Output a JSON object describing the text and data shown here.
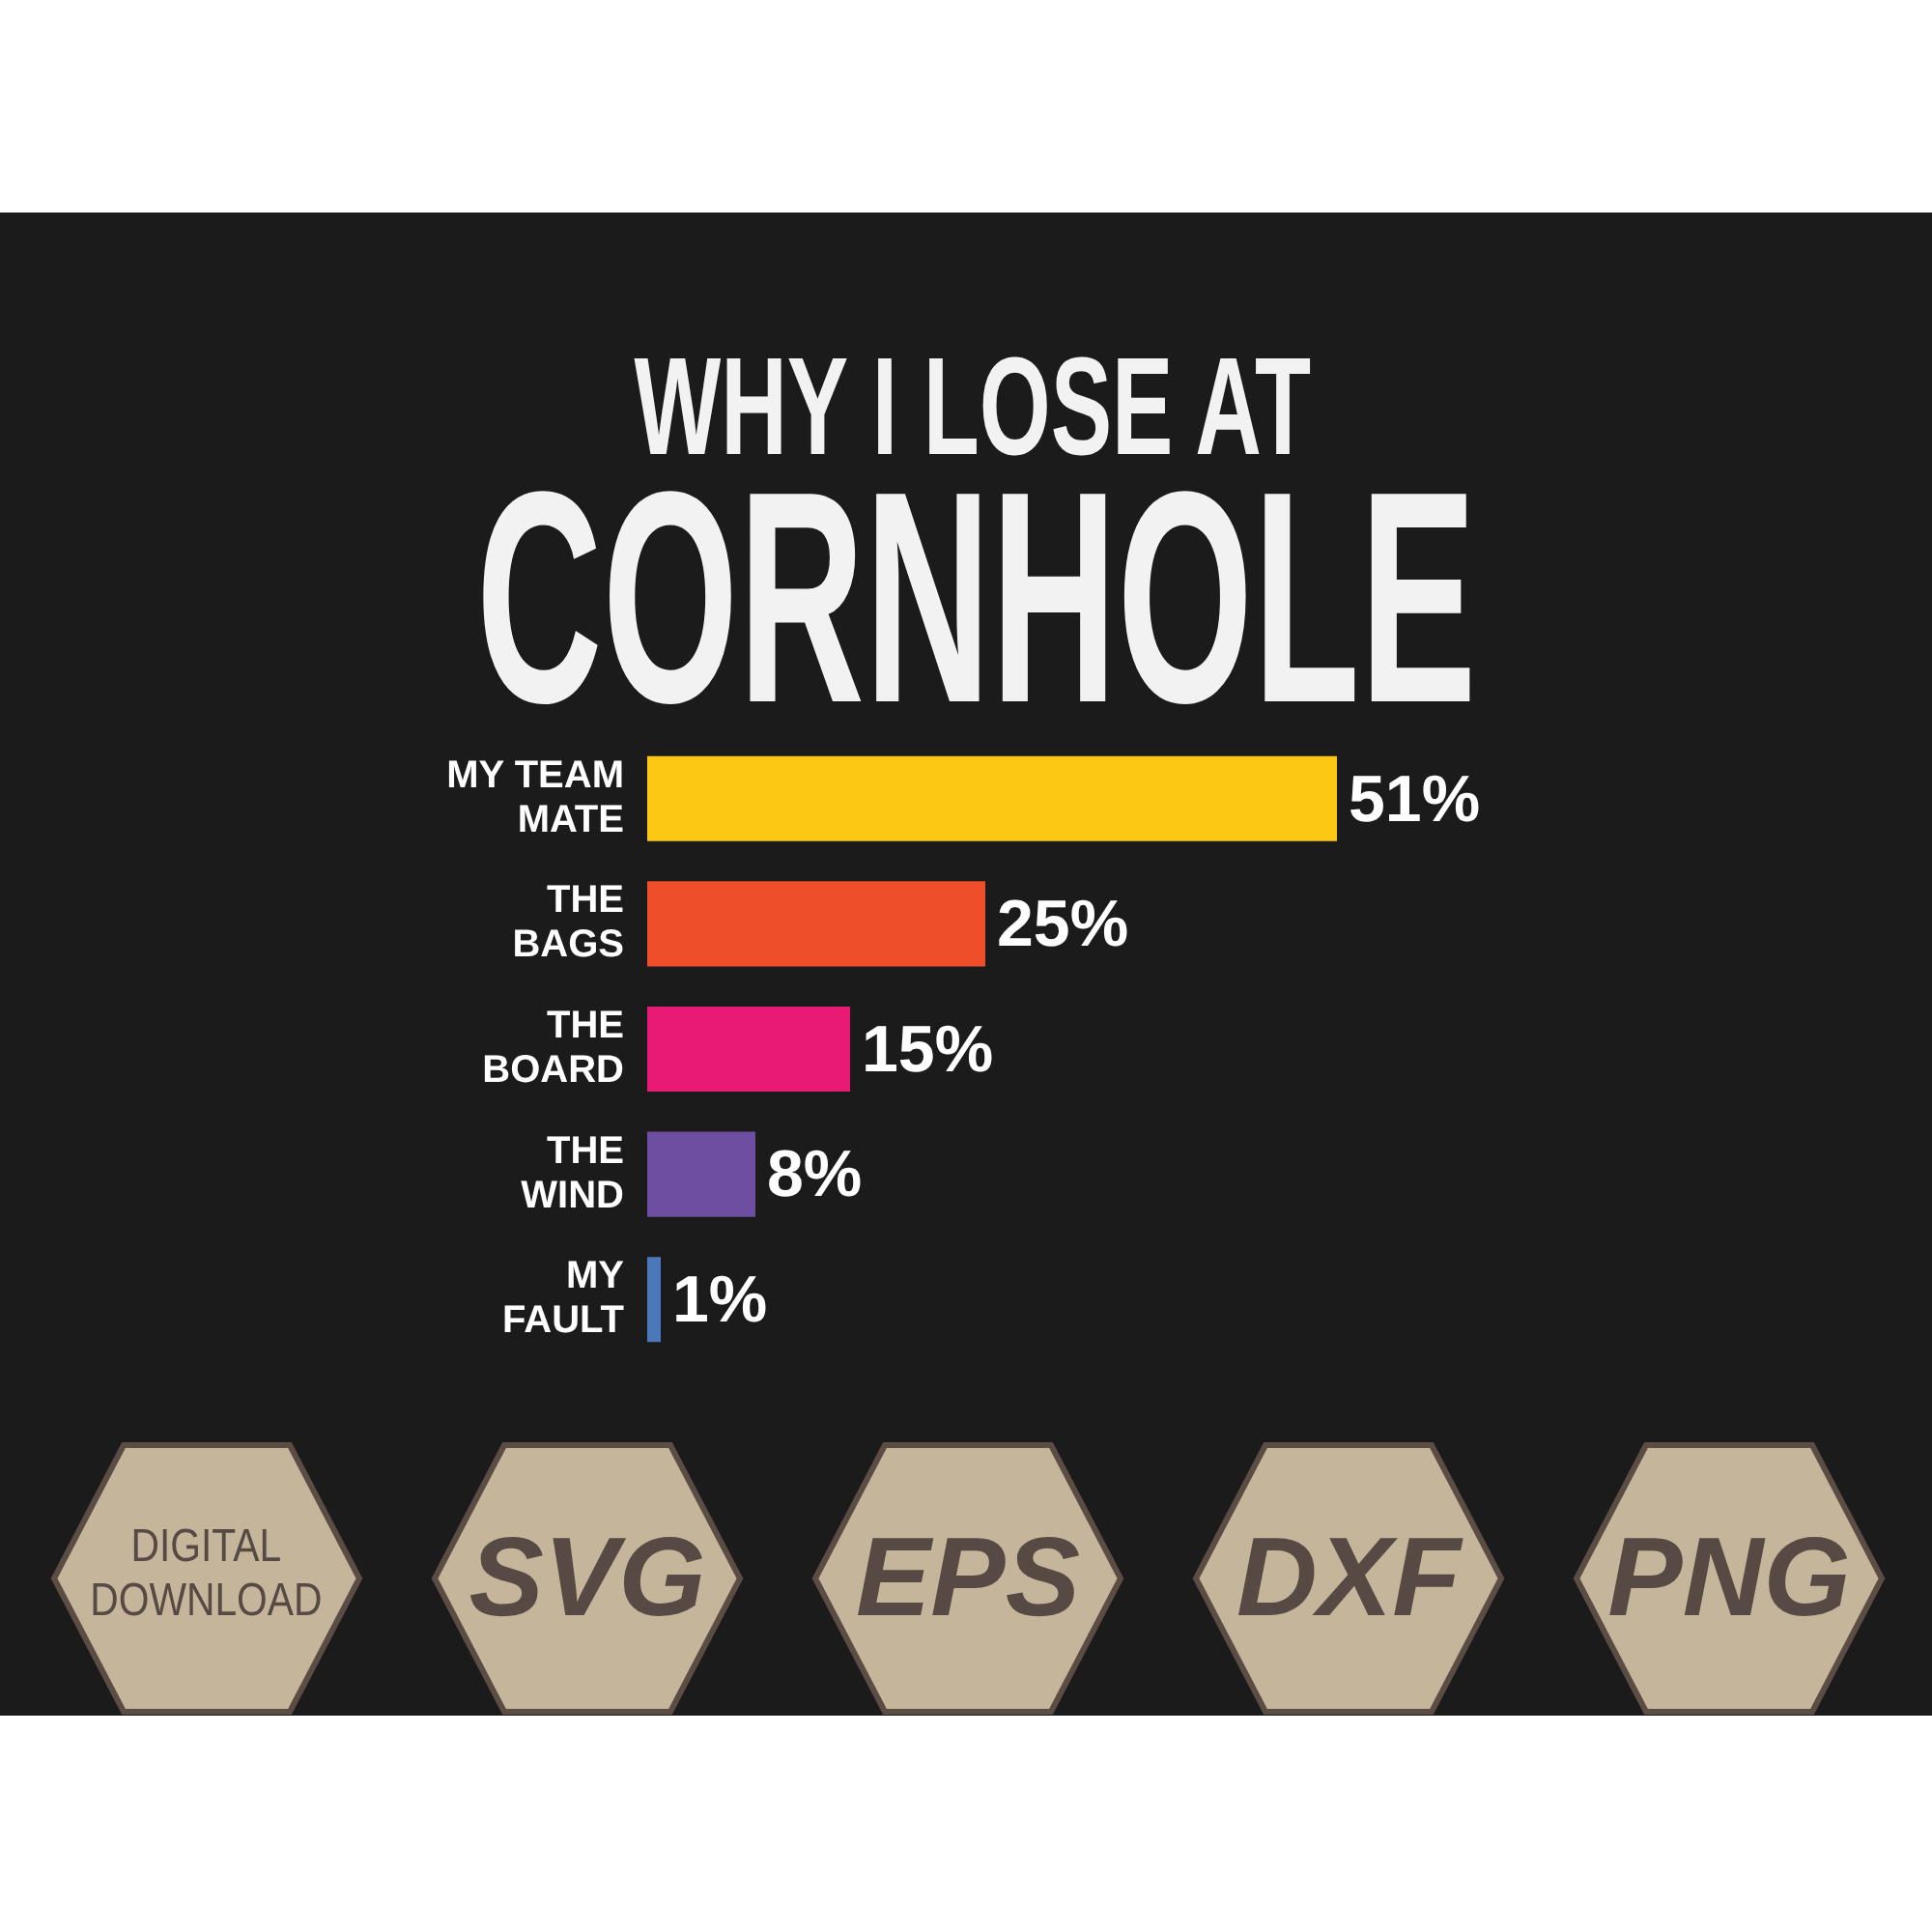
{
  "chart_data": {
    "type": "bar",
    "orientation": "horizontal",
    "title": "WHY I LOSE AT",
    "subtitle": "CORNHOLE",
    "categories": [
      "MY TEAM MATE",
      "THE BAGS",
      "THE BOARD",
      "THE WIND",
      "MY FAULT"
    ],
    "values": [
      51,
      25,
      15,
      8,
      1
    ],
    "colors": [
      "#fcc814",
      "#ee4f2a",
      "#e91a75",
      "#6e4ea0",
      "#4a78b8"
    ],
    "value_labels": [
      "51%",
      "25%",
      "15%",
      "8%",
      "1%"
    ],
    "annotations": [
      "DIGITAL DOWNLOAD",
      "SVG",
      "EPS",
      "DXF",
      "PNG"
    ]
  }
}
